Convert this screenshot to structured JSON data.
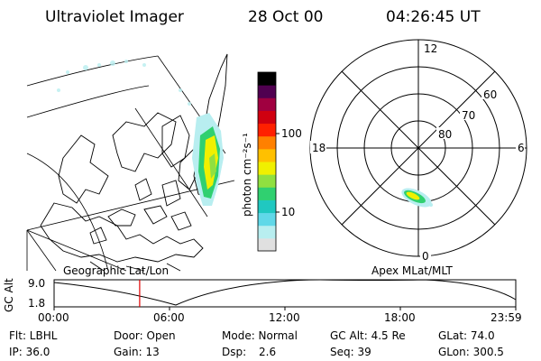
{
  "header": {
    "instrument": "Ultraviolet Imager",
    "date": "28 Oct 00",
    "time": "04:26:45 UT"
  },
  "geo_panel": {
    "label": "Geographic Lat/Lon"
  },
  "colorbar": {
    "unit_label": "photon cm⁻²s⁻¹",
    "tick_100": "100",
    "tick_10": "10",
    "colors": [
      "#e0e0e0",
      "#b8eef0",
      "#60d8e8",
      "#20c8c0",
      "#30d070",
      "#90e040",
      "#f0f000",
      "#ffc000",
      "#ff8000",
      "#ff2000",
      "#d00010",
      "#a00040",
      "#500050",
      "#000000"
    ]
  },
  "polar_panel": {
    "label": "Apex MLat/MLT",
    "mlt_12": "12",
    "mlt_18": "18",
    "mlt_6": "6",
    "mlt_0": "0",
    "lat_60": "60",
    "lat_70": "70",
    "lat_80": "80"
  },
  "altitude_strip": {
    "axis_label": "GC Alt",
    "y_max": "9.0",
    "y_min": "1.8",
    "times": [
      "00:00",
      "06:00",
      "12:00",
      "18:00",
      "23:59"
    ],
    "marker_time_hours": 4.45
  },
  "info": {
    "filter": "Flt: LBHL",
    "door": "Door: Open",
    "mode": "Mode: Normal",
    "gc_alt": "GC Alt: 4.5 Re",
    "glat": "GLat: 74.0",
    "ip": "IP: 36.0",
    "gain": "Gain: 13",
    "dsp_label": "Dsp:",
    "dsp_value": "2.6",
    "seq": "Seq: 39",
    "glon": "GLon: 300.5"
  }
}
